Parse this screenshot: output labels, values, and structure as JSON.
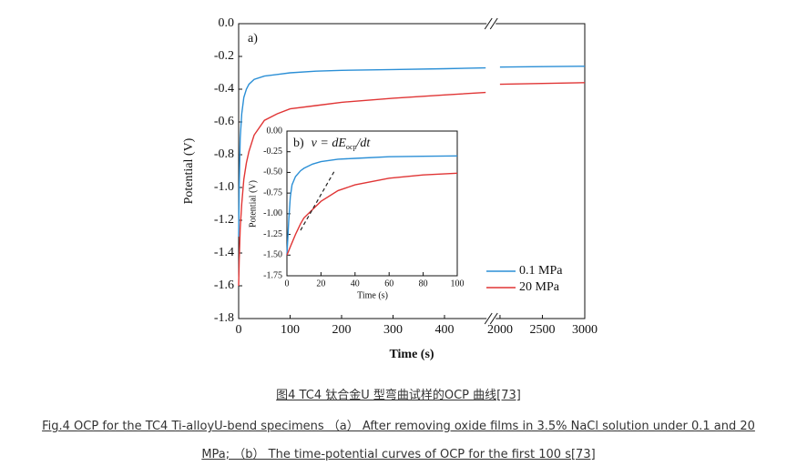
{
  "chart_data": [
    {
      "type": "line",
      "title": "a)",
      "x_label": "Time (s)",
      "y_label": "Potential (V)",
      "x": [
        0,
        1,
        3,
        6,
        10,
        15,
        20,
        30,
        50,
        75,
        100,
        150,
        200,
        300,
        400,
        480,
        1000,
        2000,
        2500,
        3000
      ],
      "series": [
        {
          "name": "0.1 MPa",
          "color": "#2b8fd6",
          "values": [
            -1.3,
            -1.0,
            -0.7,
            -0.55,
            -0.45,
            -0.4,
            -0.37,
            -0.34,
            -0.32,
            -0.31,
            -0.3,
            -0.29,
            -0.285,
            -0.28,
            -0.275,
            -0.27,
            null,
            -0.265,
            -0.262,
            -0.26
          ]
        },
        {
          "name": "20 MPa",
          "color": "#e03535",
          "values": [
            -1.6,
            -1.45,
            -1.25,
            -1.1,
            -0.95,
            -0.85,
            -0.78,
            -0.68,
            -0.59,
            -0.55,
            -0.52,
            -0.5,
            -0.48,
            -0.455,
            -0.435,
            -0.42,
            null,
            -0.37,
            -0.365,
            -0.36
          ]
        }
      ],
      "xlim": [
        0,
        3000
      ],
      "xbreak": [
        480,
        1960
      ],
      "xticks": [
        0,
        100,
        200,
        300,
        400,
        2000,
        2500,
        3000
      ],
      "ylim": [
        -1.8,
        0
      ],
      "yticks": [
        {
          "value": 0,
          "label": "0.0"
        },
        -0.2,
        -0.4,
        -0.6,
        -0.8,
        {
          "value": -1,
          "label": "-1.0"
        },
        -1.2,
        -1.4,
        -1.6,
        -1.8
      ],
      "legend": "lower right"
    },
    {
      "type": "line",
      "title": "b)",
      "equation": {
        "lhs": "v = dE",
        "sub": "ocp",
        "rhs": "/dt"
      },
      "x_label": "Time (s)",
      "y_label": "Potential (V)",
      "x": [
        0,
        1,
        2,
        3,
        5,
        8,
        10,
        15,
        20,
        30,
        40,
        60,
        80,
        100
      ],
      "series": [
        {
          "name": "0.1 MPa",
          "color": "#2b8fd6",
          "values": [
            -1.5,
            -1.1,
            -0.8,
            -0.65,
            -0.55,
            -0.48,
            -0.45,
            -0.4,
            -0.37,
            -0.34,
            -0.33,
            -0.31,
            -0.305,
            -0.3
          ]
        },
        {
          "name": "20 MPa",
          "color": "#e03535",
          "values": [
            -1.5,
            -1.45,
            -1.4,
            -1.35,
            -1.25,
            -1.12,
            -1.05,
            -0.95,
            -0.85,
            -0.72,
            -0.65,
            -0.57,
            -0.53,
            -0.51
          ]
        }
      ],
      "tangent": {
        "x": [
          8,
          28
        ],
        "y": [
          -1.2,
          -0.48
        ],
        "color": "#222"
      },
      "xlim": [
        0,
        100
      ],
      "xticks": [
        0,
        20,
        40,
        60,
        80,
        100
      ],
      "ylim": [
        -1.75,
        0
      ],
      "yticks": [
        {
          "value": 0,
          "label": "0.00"
        },
        -0.25,
        {
          "value": -0.5,
          "label": "-0.50"
        },
        -0.75,
        {
          "value": -1,
          "label": "-1.00"
        },
        -1.25,
        {
          "value": -1.5,
          "label": "-1.50"
        },
        -1.75
      ]
    }
  ],
  "captions": {
    "cn": "图4 TC4 钛合金U 型弯曲试样的OCP 曲线[73]",
    "en": [
      "Fig.4 OCP for the TC4 Ti-alloyU-bend specimens （a） After removing oxide films in 3.5% NaCl solution under 0.1 and 20",
      "MPa; （b） The time-potential curves of OCP for the first 100 s[73]"
    ]
  }
}
